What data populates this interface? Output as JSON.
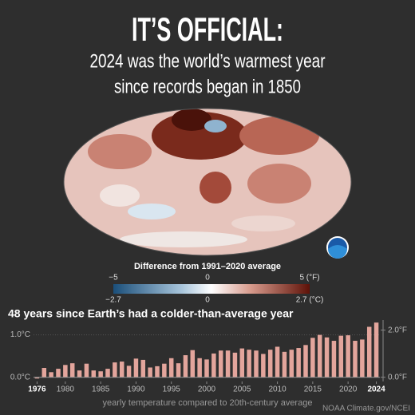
{
  "header": {
    "title": "IT’S OFFICIAL:",
    "subtitle": [
      "2024 was the world’s warmest year",
      "since records began in 1850"
    ]
  },
  "map_legend": {
    "title": "Difference from 1991–2020 average",
    "fahrenheit_labels": [
      "−5",
      "0",
      "5 (°F)"
    ],
    "celsius_labels": [
      "−2.7",
      "0",
      "2.7 (°C)"
    ]
  },
  "chart_data": {
    "type": "bar",
    "title": "48 years since Earth’s had a colder-than-average year",
    "x_label": "yearly temperature compared to 20th-century average",
    "x": [
      1976,
      1977,
      1978,
      1979,
      1980,
      1981,
      1982,
      1983,
      1984,
      1985,
      1986,
      1987,
      1988,
      1989,
      1990,
      1991,
      1992,
      1993,
      1994,
      1995,
      1996,
      1997,
      1998,
      1999,
      2000,
      2001,
      2002,
      2003,
      2004,
      2005,
      2006,
      2007,
      2008,
      2009,
      2010,
      2011,
      2012,
      2013,
      2014,
      2015,
      2016,
      2017,
      2018,
      2019,
      2020,
      2021,
      2022,
      2023,
      2024
    ],
    "values": [
      -0.03,
      0.22,
      0.12,
      0.2,
      0.29,
      0.33,
      0.16,
      0.32,
      0.16,
      0.14,
      0.2,
      0.35,
      0.37,
      0.27,
      0.44,
      0.41,
      0.23,
      0.26,
      0.32,
      0.45,
      0.33,
      0.52,
      0.64,
      0.45,
      0.42,
      0.56,
      0.63,
      0.63,
      0.58,
      0.68,
      0.65,
      0.63,
      0.55,
      0.65,
      0.72,
      0.6,
      0.65,
      0.69,
      0.76,
      0.93,
      1.0,
      0.94,
      0.86,
      0.98,
      0.99,
      0.86,
      0.89,
      1.19,
      1.29
    ],
    "color": "#e3a59c",
    "xlim": [
      1975.5,
      2024.5
    ],
    "xticks": [
      1976,
      1980,
      1985,
      1990,
      1995,
      2000,
      2005,
      2010,
      2015,
      2020,
      2024
    ],
    "ylim": [
      -0.1,
      1.35
    ],
    "yticks": [
      {
        "value": 0,
        "label": "0.0°C"
      },
      {
        "value": 1,
        "label": "1.0°C"
      }
    ],
    "y2lim": [
      -0.18,
      2.43
    ],
    "y2ticks": [
      {
        "value": 0,
        "label": "0.0°F"
      },
      {
        "value": 2,
        "label": "2.0°F"
      }
    ]
  },
  "credit": "NOAA Climate.gov/NCEI"
}
